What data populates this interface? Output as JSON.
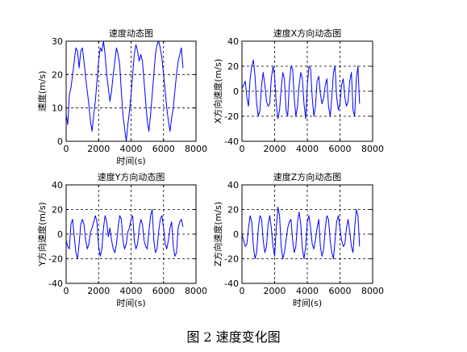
{
  "caption": "图 2  速度变化图",
  "chart_data": [
    {
      "type": "line",
      "title": "速度动态图",
      "xlabel": "时间(s)",
      "ylabel": "速度(m/s)",
      "xlim": [
        0,
        8000
      ],
      "ylim": [
        0,
        30
      ],
      "xticks": [
        0,
        2000,
        4000,
        6000,
        8000
      ],
      "yticks": [
        0,
        10,
        20,
        30
      ],
      "grid": "dashed",
      "color": "#0000ff",
      "series": [
        {
          "x": [
            0,
            100,
            200,
            300,
            400,
            500,
            600,
            700,
            800,
            900,
            1000,
            1100,
            1200,
            1300,
            1400,
            1500,
            1600,
            1700,
            1800,
            1900,
            2000,
            2100,
            2200,
            2300,
            2400,
            2500,
            2600,
            2700,
            2800,
            2900,
            3000,
            3100,
            3200,
            3300,
            3400,
            3500,
            3600,
            3700,
            3800,
            3900,
            4000,
            4100,
            4200,
            4300,
            4400,
            4500,
            4600,
            4700,
            4800,
            4900,
            5000,
            5100,
            5200,
            5300,
            5400,
            5500,
            5600,
            5700,
            5800,
            5900,
            6000,
            6100,
            6200,
            6300,
            6400,
            6500,
            6600,
            6700,
            6800,
            6900,
            7000,
            7100,
            7200
          ],
          "y": [
            8,
            5,
            14,
            16,
            20,
            24,
            28,
            27,
            22,
            27,
            28,
            24,
            19,
            15,
            11,
            6,
            3,
            8,
            12,
            18,
            24,
            28,
            27,
            30,
            26,
            20,
            16,
            12,
            15,
            20,
            24,
            28,
            26,
            23,
            15,
            8,
            4,
            0,
            5,
            9,
            14,
            20,
            26,
            29,
            27,
            24,
            26,
            24,
            18,
            12,
            6,
            3,
            8,
            14,
            20,
            26,
            29,
            30,
            28,
            25,
            20,
            15,
            10,
            6,
            3,
            7,
            10,
            15,
            20,
            24,
            26,
            28,
            22
          ]
        }
      ]
    },
    {
      "type": "line",
      "title": "速度X方向动态图",
      "xlabel": "",
      "ylabel": "X方向速度(m/s)",
      "xlim": [
        0,
        8000
      ],
      "ylim": [
        -40,
        40
      ],
      "xticks": [
        0,
        2000,
        4000,
        6000,
        8000
      ],
      "yticks": [
        -40,
        -20,
        0,
        20,
        40
      ],
      "grid": "dashed",
      "color": "#0000ff",
      "series": [
        {
          "x": [
            0,
            100,
            200,
            300,
            400,
            500,
            600,
            700,
            800,
            900,
            1000,
            1100,
            1200,
            1300,
            1400,
            1500,
            1600,
            1700,
            1800,
            1900,
            2000,
            2100,
            2200,
            2300,
            2400,
            2500,
            2600,
            2700,
            2800,
            2900,
            3000,
            3100,
            3200,
            3300,
            3400,
            3500,
            3600,
            3700,
            3800,
            3900,
            4000,
            4100,
            4200,
            4300,
            4400,
            4500,
            4600,
            4700,
            4800,
            4900,
            5000,
            5100,
            5200,
            5300,
            5400,
            5500,
            5600,
            5700,
            5800,
            5900,
            6000,
            6100,
            6200,
            6300,
            6400,
            6500,
            6600,
            6700,
            6800,
            6900,
            7000,
            7100,
            7200
          ],
          "y": [
            2,
            5,
            8,
            -5,
            -12,
            10,
            20,
            25,
            12,
            -10,
            -20,
            -15,
            5,
            15,
            5,
            -8,
            -12,
            -10,
            10,
            20,
            12,
            -10,
            -22,
            -15,
            2,
            15,
            10,
            -15,
            -20,
            5,
            20,
            18,
            -5,
            -20,
            -12,
            5,
            15,
            10,
            -10,
            -22,
            5,
            20,
            18,
            -5,
            -20,
            -12,
            8,
            12,
            -2,
            -10,
            -5,
            5,
            10,
            -12,
            -20,
            -5,
            15,
            20,
            -5,
            -15,
            -10,
            5,
            10,
            -5,
            -12,
            -8,
            8,
            15,
            -15,
            -20,
            10,
            20,
            -10
          ]
        }
      ]
    },
    {
      "type": "line",
      "title": "速度Y方向动态图",
      "xlabel": "时间(s)",
      "ylabel": "Y方向速度(m/s)",
      "xlim": [
        0,
        8000
      ],
      "ylim": [
        -40,
        40
      ],
      "xticks": [
        0,
        2000,
        4000,
        6000,
        8000
      ],
      "yticks": [
        -40,
        -20,
        0,
        20,
        40
      ],
      "grid": "dashed",
      "color": "#0000ff",
      "series": [
        {
          "x": [
            0,
            100,
            200,
            300,
            400,
            500,
            600,
            700,
            800,
            900,
            1000,
            1100,
            1200,
            1300,
            1400,
            1500,
            1600,
            1700,
            1800,
            1900,
            2000,
            2100,
            2200,
            2300,
            2400,
            2500,
            2600,
            2700,
            2800,
            2900,
            3000,
            3100,
            3200,
            3300,
            3400,
            3500,
            3600,
            3700,
            3800,
            3900,
            4000,
            4100,
            4200,
            4300,
            4400,
            4500,
            4600,
            4700,
            4800,
            4900,
            5000,
            5100,
            5200,
            5300,
            5400,
            5500,
            5600,
            5700,
            5800,
            5900,
            6000,
            6100,
            6200,
            6300,
            6400,
            6500,
            6600,
            6700,
            6800,
            6900,
            7000,
            7100,
            7200
          ],
          "y": [
            -5,
            -10,
            -12,
            8,
            12,
            -2,
            -15,
            -20,
            -8,
            8,
            12,
            8,
            -5,
            -12,
            -8,
            2,
            5,
            10,
            15,
            10,
            -10,
            -18,
            -12,
            5,
            15,
            10,
            -2,
            5,
            -5,
            -12,
            -15,
            -8,
            5,
            15,
            12,
            -5,
            -12,
            -8,
            2,
            5,
            12,
            15,
            -5,
            -12,
            -8,
            5,
            12,
            8,
            -5,
            -10,
            -12,
            2,
            15,
            20,
            -5,
            -15,
            -12,
            2,
            12,
            15,
            5,
            -8,
            -12,
            -5,
            5,
            10,
            -10,
            -18,
            -15,
            5,
            10,
            12,
            6
          ]
        }
      ]
    },
    {
      "type": "line",
      "title": "速度Z方向动态图",
      "xlabel": "时间(s)",
      "ylabel": "Z方向速度(m/s)",
      "xlim": [
        0,
        8000
      ],
      "ylim": [
        -40,
        40
      ],
      "xticks": [
        0,
        2000,
        4000,
        6000,
        8000
      ],
      "yticks": [
        -40,
        -20,
        0,
        20,
        40
      ],
      "grid": "dashed",
      "color": "#0000ff",
      "series": [
        {
          "x": [
            0,
            100,
            200,
            300,
            400,
            500,
            600,
            700,
            800,
            900,
            1000,
            1100,
            1200,
            1300,
            1400,
            1500,
            1600,
            1700,
            1800,
            1900,
            2000,
            2100,
            2200,
            2300,
            2400,
            2500,
            2600,
            2700,
            2800,
            2900,
            3000,
            3100,
            3200,
            3300,
            3400,
            3500,
            3600,
            3700,
            3800,
            3900,
            4000,
            4100,
            4200,
            4300,
            4400,
            4500,
            4600,
            4700,
            4800,
            4900,
            5000,
            5100,
            5200,
            5300,
            5400,
            5500,
            5600,
            5700,
            5800,
            5900,
            6000,
            6100,
            6200,
            6300,
            6400,
            6500,
            6600,
            6700,
            6800,
            6900,
            7000,
            7100,
            7200
          ],
          "y": [
            0,
            -5,
            -10,
            -8,
            5,
            15,
            10,
            -10,
            -20,
            -15,
            5,
            15,
            12,
            -5,
            -15,
            -10,
            8,
            15,
            5,
            -10,
            -18,
            5,
            22,
            15,
            -10,
            -20,
            -15,
            -5,
            5,
            10,
            12,
            -5,
            -15,
            -10,
            10,
            18,
            8,
            -12,
            -20,
            -10,
            10,
            15,
            5,
            -8,
            -12,
            -5,
            5,
            12,
            -10,
            -18,
            -12,
            5,
            15,
            12,
            -5,
            -15,
            -20,
            -5,
            10,
            15,
            5,
            -5,
            -10,
            -8,
            5,
            12,
            2,
            -10,
            -15,
            5,
            20,
            15,
            -10
          ]
        }
      ]
    }
  ]
}
